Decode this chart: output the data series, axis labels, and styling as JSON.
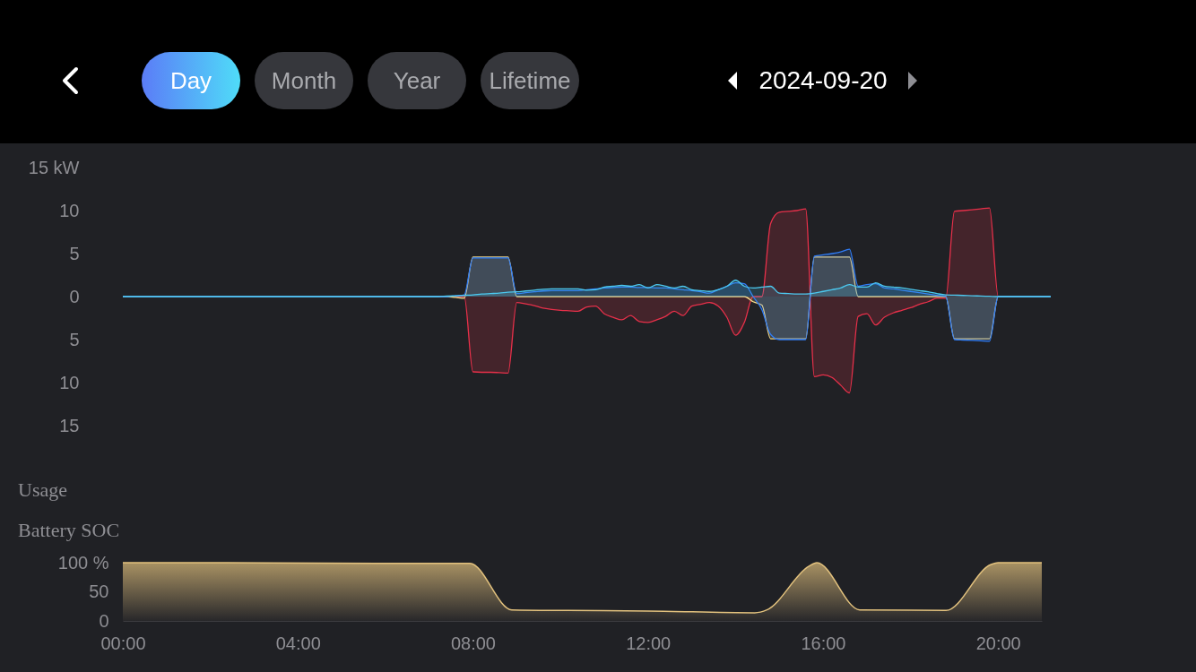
{
  "chart_data": [
    {
      "type": "other",
      "annotations": [
        "Day",
        "Month",
        "Year",
        "Lifetime",
        "2024-09-20"
      ]
    },
    {
      "type": "area",
      "title": "Usage",
      "ylim": [
        -15,
        15
      ],
      "tick_labels": "y",
      "categories": [
        null,
        null,
        null,
        null,
        null,
        null,
        null,
        null,
        null,
        null,
        null,
        null,
        null,
        null,
        null,
        null,
        null,
        null,
        null,
        null,
        null,
        null,
        null,
        null,
        null,
        null,
        null,
        null,
        null,
        null,
        null,
        null,
        null,
        null,
        null,
        null,
        null,
        null,
        null,
        null,
        null,
        null,
        null,
        null,
        null,
        null,
        null,
        null,
        null,
        null,
        null,
        null,
        null,
        null,
        null,
        null,
        null,
        null,
        null,
        null,
        null,
        null,
        null,
        null,
        null,
        null,
        null,
        null,
        null,
        null,
        null,
        null,
        null,
        null,
        null,
        null,
        null,
        null,
        null,
        null,
        null,
        null,
        null,
        null,
        null,
        null,
        null,
        null,
        null,
        null,
        null,
        null,
        null,
        null,
        null,
        null,
        null,
        null,
        null,
        null,
        null,
        null,
        null,
        null,
        null,
        null,
        null
      ],
      "yticks": [
        {
          "value": 15,
          "label": "15 kW"
        },
        {
          "value": 10,
          "label": "10"
        },
        {
          "value": 5,
          "label": "5"
        },
        {
          "value": 0,
          "label": "0"
        },
        {
          "value": -5,
          "label": "5"
        },
        {
          "value": -10,
          "label": "10"
        },
        {
          "value": -15,
          "label": "15"
        }
      ],
      "series": [
        {
          "color": "#e8304a",
          "values": [
            0,
            0,
            0,
            0,
            0,
            0,
            0,
            0,
            0,
            0,
            0,
            0,
            0,
            0,
            0,
            0,
            0,
            0,
            0,
            0,
            0,
            0,
            0,
            0,
            0,
            0,
            0,
            0,
            0,
            0,
            0,
            0,
            0,
            0,
            0,
            0,
            0,
            0,
            0,
            0,
            -8.75,
            -8.8,
            -8.8,
            -8.85,
            -8.9,
            -0.7,
            -0.85,
            -1.05,
            -1.35,
            -1.5,
            -1.6,
            -1.65,
            -1.7,
            -1.2,
            -1.1,
            -2.0,
            -2.4,
            -2.7,
            -2.2,
            -2.9,
            -3.0,
            -2.7,
            -2.3,
            -1.7,
            -2.2,
            -1.1,
            -0.9,
            -0.7,
            -1.1,
            -2.4,
            -4.5,
            -3.0,
            0,
            0,
            8.5,
            9.8,
            9.9,
            10.0,
            10.2,
            -9.3,
            -9.1,
            -9.4,
            -10.3,
            -11.2,
            -2.3,
            -2.0,
            -3.3,
            -2.4,
            -1.9,
            -1.6,
            -1.3,
            -0.9,
            -0.6,
            -0.2,
            -0.2,
            9.9,
            10.0,
            10.1,
            10.2,
            10.3,
            0,
            0,
            0,
            0,
            0,
            0,
            0
          ]
        },
        {
          "color": "#f2d98a",
          "values": [
            0,
            0,
            0,
            0,
            0,
            0,
            0,
            0,
            0,
            0,
            0,
            0,
            0,
            0,
            0,
            0,
            0,
            0,
            0,
            0,
            0,
            0,
            0,
            0,
            0,
            0,
            0,
            0,
            0,
            0,
            0,
            0,
            0,
            0,
            0,
            0,
            0,
            0,
            -0.1,
            -0.2,
            4.6,
            4.6,
            4.6,
            4.6,
            4.6,
            0,
            0,
            0,
            0,
            0,
            0,
            0,
            0,
            0,
            0,
            0,
            0,
            0,
            0,
            0,
            0,
            0,
            0,
            0,
            0,
            0,
            0,
            0,
            0,
            0,
            0,
            0,
            -0.6,
            -1.0,
            -4.9,
            -4.9,
            -4.9,
            -4.9,
            -4.9,
            4.6,
            4.6,
            4.6,
            4.6,
            4.6,
            0,
            0,
            0,
            0,
            0,
            0,
            0,
            0,
            0,
            0,
            0,
            -4.9,
            -4.9,
            -4.9,
            -4.9,
            -4.9,
            0,
            0,
            0,
            0,
            0,
            0,
            0
          ]
        },
        {
          "color": "#2f7cf6",
          "values": [
            0,
            0,
            0,
            0,
            0,
            0,
            0,
            0,
            0,
            0,
            0,
            0,
            0,
            0,
            0,
            0,
            0,
            0,
            0,
            0,
            0,
            0,
            0,
            0,
            0,
            0,
            0,
            0,
            0,
            0,
            0,
            0,
            0,
            0,
            0,
            0,
            0,
            0,
            0.1,
            0.2,
            4.5,
            4.5,
            4.5,
            4.5,
            4.5,
            0.35,
            0.45,
            0.55,
            0.65,
            0.7,
            0.7,
            0.7,
            0.7,
            0.8,
            0.9,
            1.0,
            1.05,
            1.1,
            1.1,
            1.05,
            1.05,
            1.0,
            1.0,
            0.9,
            0.8,
            0.7,
            0.55,
            0.4,
            0.8,
            1.2,
            1.6,
            1.5,
            0,
            -1.5,
            -4.4,
            -5.0,
            -5.0,
            -5.0,
            -5.0,
            4.7,
            4.85,
            5.0,
            5.2,
            5.5,
            1.2,
            1.4,
            1.5,
            1.0,
            0.9,
            0.75,
            0.6,
            0.45,
            0.3,
            0.15,
            0,
            -5.0,
            -5.05,
            -5.1,
            -5.15,
            -5.2,
            0,
            0,
            0,
            0,
            0,
            0,
            0
          ]
        },
        {
          "color": "#4cc9f0",
          "values": [
            0,
            0,
            0,
            0,
            0,
            0,
            0,
            0,
            0,
            0,
            0,
            0,
            0,
            0,
            0,
            0,
            0,
            0,
            0,
            0,
            0,
            0,
            0,
            0,
            0,
            0,
            0,
            0,
            0,
            0,
            0,
            0,
            0,
            0,
            0,
            0,
            0,
            0.05,
            0.1,
            0.15,
            0.2,
            0.3,
            0.35,
            0.4,
            0.5,
            0.55,
            0.65,
            0.75,
            0.85,
            0.9,
            0.9,
            0.9,
            0.9,
            0.75,
            0.8,
            1.1,
            1.2,
            1.3,
            1.2,
            1.4,
            1.0,
            1.4,
            1.2,
            1.0,
            1.2,
            0.8,
            0.7,
            0.6,
            0.8,
            1.2,
            1.9,
            1.2,
            1.0,
            1.1,
            1.2,
            0.4,
            0.35,
            0.3,
            0.3,
            0.4,
            0.6,
            0.8,
            1.0,
            1.4,
            1.1,
            1.1,
            1.6,
            1.2,
            1.1,
            1.0,
            0.85,
            0.7,
            0.55,
            0.35,
            0.2,
            0.17,
            0.13,
            0.1,
            0.06,
            0.03,
            0,
            0,
            0,
            0,
            0,
            0,
            0
          ]
        }
      ]
    },
    {
      "type": "area",
      "title": "Battery SOC",
      "xlim": [
        0,
        21
      ],
      "ylim": [
        0,
        100
      ],
      "xticks": [
        {
          "value": 0,
          "label": "00:00"
        },
        {
          "value": 4,
          "label": "04:00"
        },
        {
          "value": 8,
          "label": "08:00"
        },
        {
          "value": 12,
          "label": "12:00"
        },
        {
          "value": 16,
          "label": "16:00"
        },
        {
          "value": 20,
          "label": "20:00"
        }
      ],
      "yticks": [
        {
          "value": 100,
          "label": "100 %"
        },
        50,
        0
      ],
      "series": [
        {
          "color": "#e3c27e",
          "x": [
            0,
            1.7,
            5.8,
            7.93,
            8.89,
            10.18,
            12.0,
            14.44,
            14.72,
            15.68,
            15.86,
            16.84,
            18.81,
            19.84,
            20.0,
            21.0
          ],
          "values": [
            100,
            100,
            99,
            99,
            19,
            18,
            17,
            14,
            19,
            94,
            100,
            19,
            18,
            97,
            100,
            100
          ]
        }
      ]
    }
  ]
}
